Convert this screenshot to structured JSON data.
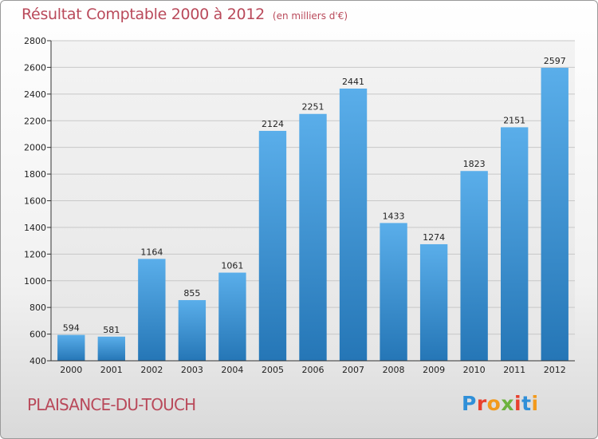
{
  "title": "Résultat Comptable 2000 à 2012",
  "unit_note": "(en milliers d'€)",
  "location": "PLAISANCE-DU-TOUCH",
  "logo": {
    "text": "Proxiti",
    "letter_colors": [
      "#2f8fd8",
      "#e8412e",
      "#f29a1d",
      "#6db33f",
      "#e8412e",
      "#2f8fd8",
      "#f29a1d"
    ]
  },
  "colors": {
    "title": "#b9495a",
    "bar_top": "#5aaeea",
    "bar_bottom": "#2576b6"
  },
  "chart_data": {
    "type": "bar",
    "title": "Résultat Comptable 2000 à 2012",
    "subtitle": "(en milliers d'€)",
    "xlabel": "",
    "ylabel": "",
    "categories": [
      "2000",
      "2001",
      "2002",
      "2003",
      "2004",
      "2005",
      "2006",
      "2007",
      "2008",
      "2009",
      "2010",
      "2011",
      "2012"
    ],
    "values": [
      594,
      581,
      1164,
      855,
      1061,
      2124,
      2251,
      2441,
      1433,
      1274,
      1823,
      2151,
      2597
    ],
    "ylim": [
      400,
      2800
    ],
    "yticks": [
      400,
      600,
      800,
      1000,
      1200,
      1400,
      1600,
      1800,
      2000,
      2200,
      2400,
      2600,
      2800
    ],
    "grid": true,
    "data_labels": true,
    "legend": "none"
  }
}
